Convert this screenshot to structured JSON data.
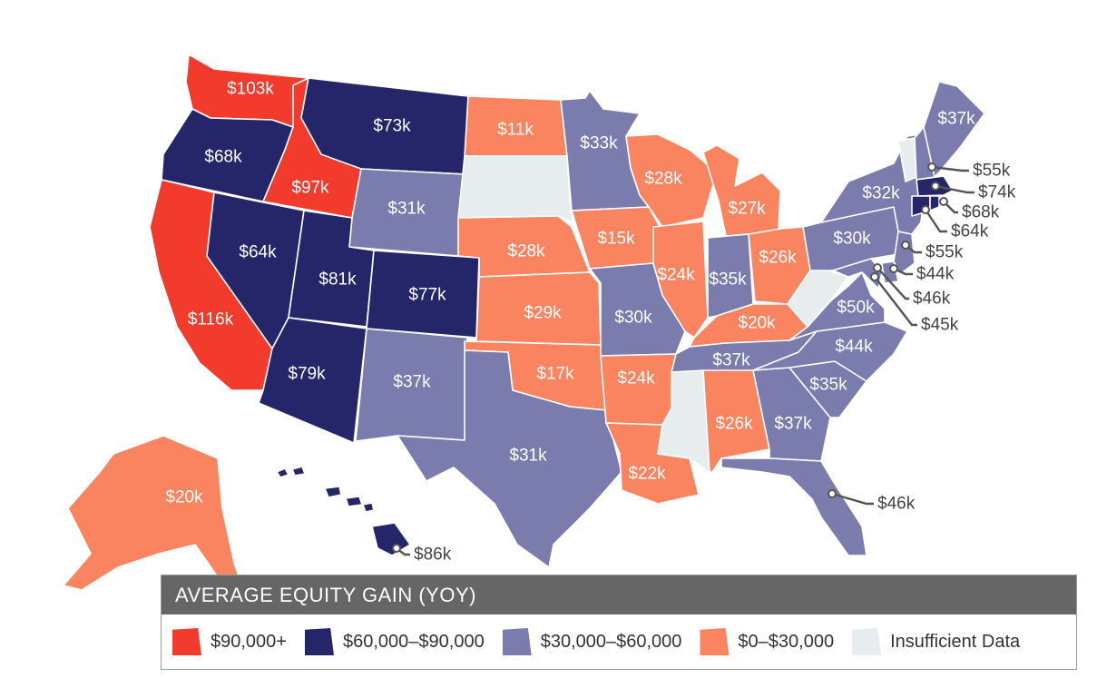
{
  "colors": {
    "high": "#f23a2d",
    "mid_high": "#252669",
    "mid": "#7b7cae",
    "low": "#fb8460",
    "none": "#e7ecef"
  },
  "legend": {
    "title": "AVERAGE EQUITY GAIN (YOY)",
    "items": [
      {
        "label": "$90,000+",
        "color": "#f23a2d"
      },
      {
        "label": "$60,000–$90,000",
        "color": "#252669"
      },
      {
        "label": "$30,000–$60,000",
        "color": "#7b7cae"
      },
      {
        "label": "$0–$30,000",
        "color": "#fb8460"
      },
      {
        "label": "Insufficient Data",
        "color": "#e7ecef"
      }
    ]
  },
  "states": {
    "WA": {
      "value": "$103k",
      "tier": "high"
    },
    "OR": {
      "value": "$68k",
      "tier": "mid_high"
    },
    "CA": {
      "value": "$116k",
      "tier": "high"
    },
    "ID": {
      "value": "$97k",
      "tier": "high"
    },
    "NV": {
      "value": "$64k",
      "tier": "mid_high"
    },
    "MT": {
      "value": "$73k",
      "tier": "mid_high"
    },
    "WY": {
      "value": "$31k",
      "tier": "mid"
    },
    "UT": {
      "value": "$81k",
      "tier": "mid_high"
    },
    "CO": {
      "value": "$77k",
      "tier": "mid_high"
    },
    "AZ": {
      "value": "$79k",
      "tier": "mid_high"
    },
    "NM": {
      "value": "$37k",
      "tier": "mid"
    },
    "ND": {
      "value": "$11k",
      "tier": "low"
    },
    "SD": {
      "value": "",
      "tier": "none"
    },
    "NE": {
      "value": "$28k",
      "tier": "low"
    },
    "KS": {
      "value": "$29k",
      "tier": "low"
    },
    "OK": {
      "value": "$17k",
      "tier": "low"
    },
    "TX": {
      "value": "$31k",
      "tier": "mid"
    },
    "MN": {
      "value": "$33k",
      "tier": "mid"
    },
    "IA": {
      "value": "$15k",
      "tier": "low"
    },
    "MO": {
      "value": "$30k",
      "tier": "mid"
    },
    "AR": {
      "value": "$24k",
      "tier": "low"
    },
    "LA": {
      "value": "$22k",
      "tier": "low"
    },
    "WI": {
      "value": "$28k",
      "tier": "low"
    },
    "IL": {
      "value": "$24k",
      "tier": "low"
    },
    "MI": {
      "value": "$27k",
      "tier": "low"
    },
    "IN": {
      "value": "$35k",
      "tier": "mid"
    },
    "OH": {
      "value": "$26k",
      "tier": "low"
    },
    "KY": {
      "value": "$20k",
      "tier": "low"
    },
    "TN": {
      "value": "$37k",
      "tier": "mid"
    },
    "MS": {
      "value": "",
      "tier": "none"
    },
    "AL": {
      "value": "$26k",
      "tier": "low"
    },
    "GA": {
      "value": "$37k",
      "tier": "mid"
    },
    "FL": {
      "value": "$46k",
      "tier": "mid"
    },
    "SC": {
      "value": "$35k",
      "tier": "mid"
    },
    "NC": {
      "value": "$44k",
      "tier": "mid"
    },
    "VA": {
      "value": "$50k",
      "tier": "mid"
    },
    "WV": {
      "value": "",
      "tier": "none"
    },
    "PA": {
      "value": "$30k",
      "tier": "mid"
    },
    "NY": {
      "value": "$32k",
      "tier": "mid"
    },
    "VT": {
      "value": "",
      "tier": "none"
    },
    "NH": {
      "value": "$55k",
      "tier": "mid"
    },
    "ME": {
      "value": "$37k",
      "tier": "mid"
    },
    "MA": {
      "value": "$74k",
      "tier": "mid_high"
    },
    "RI": {
      "value": "$68k",
      "tier": "mid_high"
    },
    "CT": {
      "value": "$64k",
      "tier": "mid_high"
    },
    "NJ": {
      "value": "$55k",
      "tier": "mid"
    },
    "DE": {
      "value": "$44k",
      "tier": "mid"
    },
    "MD": {
      "value": "$46k",
      "tier": "mid"
    },
    "DC": {
      "value": "$45k",
      "tier": "mid"
    },
    "AK": {
      "value": "$20k",
      "tier": "low"
    },
    "HI": {
      "value": "$86k",
      "tier": "mid_high"
    }
  }
}
